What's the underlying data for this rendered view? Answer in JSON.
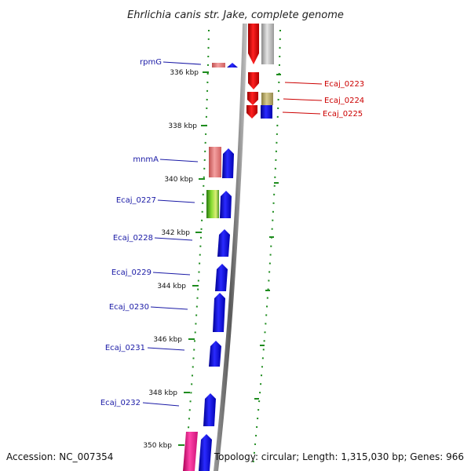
{
  "title": "Ehrlichia canis str. Jake, complete genome",
  "footer": {
    "accession": "Accession: NC_007354",
    "summary": "Topology: circular; Length: 1,315,030 bp; Genes: 966"
  },
  "scale_labels": [
    "336 kbp",
    "338 kbp",
    "340 kbp",
    "342 kbp",
    "344 kbp",
    "346 kbp",
    "348 kbp",
    "350 kbp"
  ],
  "left_gene_labels": [
    "rpmG",
    "mnmA",
    "Ecaj_0227",
    "Ecaj_0228",
    "Ecaj_0229",
    "Ecaj_0230",
    "Ecaj_0231",
    "Ecaj_0232"
  ],
  "right_gene_labels": [
    "Ecaj_0223",
    "Ecaj_0224",
    "Ecaj_0225"
  ],
  "colors": {
    "forward_strand_gene": "#1010e0",
    "reverse_strand_gene": "#dd1111",
    "rna_gene": "#e88080",
    "pseudogene_tan": "#b8ab6a",
    "pseudogene_green": "#66bb22",
    "magenta_gene": "#ee2288",
    "grey_gene": "#bdbdbd",
    "left_label_color": "#1a1aa6",
    "right_label_color": "#cc0000",
    "track_dots": "#1e8c1e"
  }
}
